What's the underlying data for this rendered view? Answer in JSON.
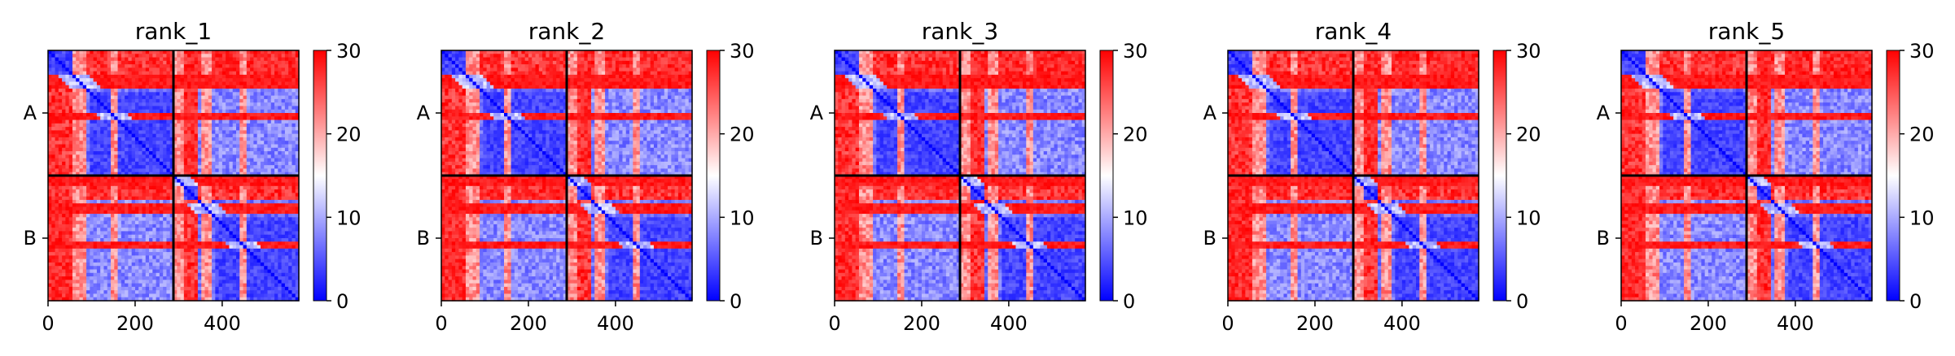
{
  "chart_data": [
    {
      "type": "heatmap",
      "title": "rank_1",
      "x_tick_labels": [
        "0",
        "200",
        "400"
      ],
      "x_ticks": [
        0,
        200,
        400
      ],
      "y_tick_labels": [
        "A",
        "B"
      ],
      "chain_boundary": 288,
      "matrix_size": 576,
      "colorbar": {
        "min": 0,
        "max": 30,
        "ticks": [
          0,
          10,
          20,
          30
        ],
        "tick_labels": [
          "0",
          "10",
          "20",
          "30"
        ],
        "cmap": "bwr"
      },
      "high_error_bands": [
        [
          60,
          90
        ],
        [
          148,
          162
        ],
        [
          288,
          310
        ],
        [
          350,
          375
        ],
        [
          440,
          452
        ]
      ]
    },
    {
      "type": "heatmap",
      "title": "rank_2",
      "x_tick_labels": [
        "0",
        "200",
        "400"
      ],
      "x_ticks": [
        0,
        200,
        400
      ],
      "y_tick_labels": [
        "A",
        "B"
      ],
      "chain_boundary": 288,
      "matrix_size": 576,
      "colorbar": {
        "min": 0,
        "max": 30,
        "ticks": [
          0,
          10,
          20,
          30
        ],
        "tick_labels": [
          "0",
          "10",
          "20",
          "30"
        ],
        "cmap": "bwr"
      },
      "high_error_bands": [
        [
          60,
          90
        ],
        [
          148,
          162
        ],
        [
          288,
          310
        ],
        [
          350,
          375
        ],
        [
          440,
          452
        ]
      ]
    },
    {
      "type": "heatmap",
      "title": "rank_3",
      "x_tick_labels": [
        "0",
        "200",
        "400"
      ],
      "x_ticks": [
        0,
        200,
        400
      ],
      "y_tick_labels": [
        "A",
        "B"
      ],
      "chain_boundary": 288,
      "matrix_size": 576,
      "colorbar": {
        "min": 0,
        "max": 30,
        "ticks": [
          0,
          10,
          20,
          30
        ],
        "tick_labels": [
          "0",
          "10",
          "20",
          "30"
        ],
        "cmap": "bwr"
      },
      "high_error_bands": [
        [
          60,
          90
        ],
        [
          148,
          162
        ],
        [
          288,
          310
        ],
        [
          350,
          375
        ],
        [
          440,
          452
        ]
      ]
    },
    {
      "type": "heatmap",
      "title": "rank_4",
      "x_tick_labels": [
        "0",
        "200",
        "400"
      ],
      "x_ticks": [
        0,
        200,
        400
      ],
      "y_tick_labels": [
        "A",
        "B"
      ],
      "chain_boundary": 288,
      "matrix_size": 576,
      "colorbar": {
        "min": 0,
        "max": 30,
        "ticks": [
          0,
          10,
          20,
          30
        ],
        "tick_labels": [
          "0",
          "10",
          "20",
          "30"
        ],
        "cmap": "bwr"
      },
      "high_error_bands": [
        [
          60,
          90
        ],
        [
          148,
          162
        ],
        [
          288,
          310
        ],
        [
          350,
          375
        ],
        [
          440,
          452
        ]
      ]
    },
    {
      "type": "heatmap",
      "title": "rank_5",
      "x_tick_labels": [
        "0",
        "200",
        "400"
      ],
      "x_ticks": [
        0,
        200,
        400
      ],
      "y_tick_labels": [
        "A",
        "B"
      ],
      "chain_boundary": 288,
      "matrix_size": 576,
      "colorbar": {
        "min": 0,
        "max": 30,
        "ticks": [
          0,
          10,
          20,
          30
        ],
        "tick_labels": [
          "0",
          "10",
          "20",
          "30"
        ],
        "cmap": "bwr"
      },
      "high_error_bands": [
        [
          60,
          90
        ],
        [
          148,
          162
        ],
        [
          288,
          310
        ],
        [
          350,
          375
        ],
        [
          440,
          452
        ]
      ]
    }
  ]
}
